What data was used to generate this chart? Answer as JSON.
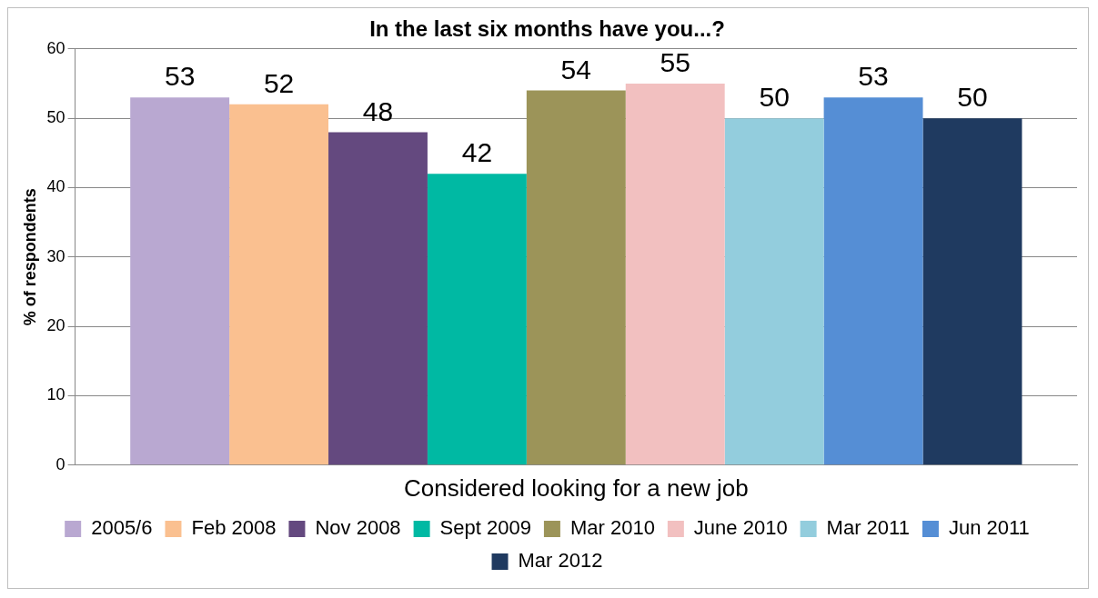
{
  "chart_data": {
    "type": "bar",
    "title": "In the last six months have you...?",
    "ylabel": "% of respondents",
    "categories": [
      "Considered looking for a new job"
    ],
    "series": [
      {
        "name": "2005/6",
        "color": "#b9a8d1",
        "values": [
          53
        ]
      },
      {
        "name": "Feb 2008",
        "color": "#fac090",
        "values": [
          52
        ]
      },
      {
        "name": "Nov 2008",
        "color": "#64497f",
        "values": [
          48
        ]
      },
      {
        "name": "Sept 2009",
        "color": "#00b9a3",
        "values": [
          42
        ]
      },
      {
        "name": "Mar 2010",
        "color": "#9c9459",
        "values": [
          54
        ]
      },
      {
        "name": "June 2010",
        "color": "#f2c0c0",
        "values": [
          55
        ]
      },
      {
        "name": "Mar 2011",
        "color": "#93cddd",
        "values": [
          50
        ]
      },
      {
        "name": "Jun 2011",
        "color": "#558ed5",
        "values": [
          53
        ]
      },
      {
        "name": "Mar 2012",
        "color": "#1f3a60",
        "values": [
          50
        ]
      }
    ],
    "ylim": [
      0,
      60
    ],
    "yticks": [
      0,
      10,
      20,
      30,
      40,
      50,
      60
    ],
    "grid": "y",
    "legend": "bottom",
    "data_labels": true
  }
}
